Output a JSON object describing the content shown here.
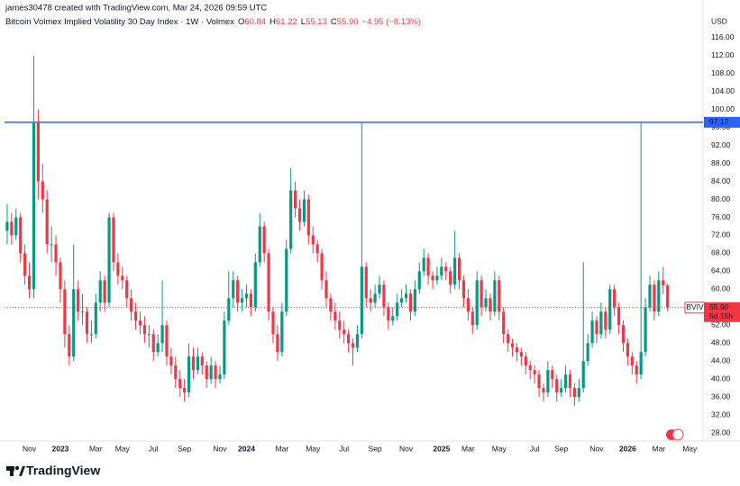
{
  "chart_data": {
    "type": "candlestick",
    "header": "james30478 created with TradingView.com, Mar 24, 2026 09:59 UTC",
    "legend": {
      "title": "Bitcoin Volmex Implied Volatility 30 Day Index · 1W · Volmex",
      "values": [
        {
          "key": "O",
          "label": "60.84"
        },
        {
          "key": "H",
          "label": "61.22"
        },
        {
          "key": "L",
          "label": "55.13"
        },
        {
          "key": "C",
          "label": "55.90"
        }
      ],
      "change": "−4.95 (−8.13%)"
    },
    "currency": "USD",
    "brand": "TradingView",
    "up_color": "#089981",
    "down_color": "#f23645",
    "xlim": [
      -0.6,
      157
    ],
    "xticks": [
      {
        "value": 5,
        "label": "Nov"
      },
      {
        "value": 12,
        "label": "2023"
      },
      {
        "value": 20,
        "label": "Mar"
      },
      {
        "value": 26,
        "label": "May"
      },
      {
        "value": 33,
        "label": "Jul"
      },
      {
        "value": 40,
        "label": "Sep"
      },
      {
        "value": 48,
        "label": "Nov"
      },
      {
        "value": 54,
        "label": "2024"
      },
      {
        "value": 62,
        "label": "Mar"
      },
      {
        "value": 69,
        "label": "May"
      },
      {
        "value": 76,
        "label": "Jul"
      },
      {
        "value": 83,
        "label": "Sep"
      },
      {
        "value": 90,
        "label": "Nov"
      },
      {
        "value": 98,
        "label": "2025"
      },
      {
        "value": 104,
        "label": "Mar"
      },
      {
        "value": 111,
        "label": "May"
      },
      {
        "value": 119,
        "label": "Jul"
      },
      {
        "value": 125,
        "label": "Sep"
      },
      {
        "value": 133,
        "label": "Nov"
      },
      {
        "value": 140,
        "label": "2026"
      },
      {
        "value": 147,
        "label": "Mar"
      },
      {
        "value": 154,
        "label": "May"
      }
    ],
    "ylim": [
      26.2,
      124.4
    ],
    "yticks": [
      {
        "value": 28,
        "label": "28.00"
      },
      {
        "value": 32,
        "label": "32.00"
      },
      {
        "value": 36,
        "label": "36.00"
      },
      {
        "value": 40,
        "label": "40.00"
      },
      {
        "value": 44,
        "label": "44.00"
      },
      {
        "value": 48,
        "label": "48.00"
      },
      {
        "value": 52,
        "label": "52.00"
      },
      {
        "value": 56,
        "label": "56.00"
      },
      {
        "value": 60,
        "label": "60.00"
      },
      {
        "value": 64,
        "label": "64.00"
      },
      {
        "value": 68,
        "label": "68.00"
      },
      {
        "value": 72,
        "label": "72.00"
      },
      {
        "value": 76,
        "label": "76.00"
      },
      {
        "value": 80,
        "label": "80.00"
      },
      {
        "value": 84,
        "label": "84.00"
      },
      {
        "value": 88,
        "label": "88.00"
      },
      {
        "value": 92,
        "label": "92.00"
      },
      {
        "value": 96,
        "label": "96.00"
      },
      {
        "value": 100,
        "label": "100.00"
      },
      {
        "value": 104,
        "label": "104.00"
      },
      {
        "value": 108,
        "label": "108.00"
      },
      {
        "value": 112,
        "label": "112.00"
      },
      {
        "value": 116,
        "label": "116.00"
      }
    ],
    "hline": {
      "value": 97.17,
      "label": "97.17",
      "color": "#2962ff"
    },
    "last_price": {
      "value": 55.9,
      "label": "55.90",
      "countdown": "5d 15h",
      "symbol": "BVIV"
    },
    "series": [
      {
        "name": "BVIV",
        "ohlc": [
          [
            73,
            79,
            70,
            75
          ],
          [
            75,
            77,
            70,
            72
          ],
          [
            72,
            78,
            71,
            76
          ],
          [
            76,
            77,
            66,
            68
          ],
          [
            68,
            70,
            61,
            63
          ],
          [
            63,
            66,
            58,
            60
          ],
          [
            60,
            112,
            58,
            97
          ],
          [
            97,
            100,
            80,
            84
          ],
          [
            84,
            88,
            77,
            80
          ],
          [
            80,
            82,
            68,
            70
          ],
          [
            70,
            74,
            66,
            70
          ],
          [
            70,
            72,
            63,
            66
          ],
          [
            66,
            67,
            57,
            60
          ],
          [
            60,
            62,
            47,
            50
          ],
          [
            50,
            52,
            43,
            45
          ],
          [
            45,
            70,
            44,
            60
          ],
          [
            60,
            62,
            53,
            55
          ],
          [
            55,
            59,
            52,
            55
          ],
          [
            55,
            56,
            48,
            50
          ],
          [
            50,
            53,
            48,
            50
          ],
          [
            50,
            59,
            49,
            57
          ],
          [
            57,
            64,
            55,
            62
          ],
          [
            62,
            63,
            55,
            57
          ],
          [
            57,
            77,
            56,
            76
          ],
          [
            76,
            77,
            64,
            66
          ],
          [
            66,
            68,
            61,
            63
          ],
          [
            63,
            65,
            60,
            62
          ],
          [
            62,
            63,
            56,
            58
          ],
          [
            58,
            60,
            53,
            55
          ],
          [
            55,
            57,
            51,
            53
          ],
          [
            53,
            55,
            50,
            52
          ],
          [
            52,
            54,
            48,
            50
          ],
          [
            50,
            52,
            47,
            50
          ],
          [
            50,
            51,
            44,
            46
          ],
          [
            46,
            50,
            45,
            48
          ],
          [
            48,
            62,
            46,
            52
          ],
          [
            52,
            53,
            43,
            45
          ],
          [
            45,
            47,
            41,
            43
          ],
          [
            43,
            45,
            38,
            40
          ],
          [
            40,
            42,
            36,
            38
          ],
          [
            38,
            40,
            35,
            37
          ],
          [
            37,
            48,
            36,
            45
          ],
          [
            45,
            47,
            40,
            42
          ],
          [
            42,
            47,
            41,
            45
          ],
          [
            45,
            46,
            41,
            43
          ],
          [
            43,
            44,
            38,
            40
          ],
          [
            40,
            45,
            39,
            43
          ],
          [
            43,
            44,
            38,
            40
          ],
          [
            40,
            43,
            39,
            41
          ],
          [
            41,
            55,
            40,
            53
          ],
          [
            53,
            64,
            52,
            58
          ],
          [
            58,
            64,
            56,
            62
          ],
          [
            62,
            63,
            55,
            57
          ],
          [
            57,
            60,
            55,
            58
          ],
          [
            58,
            61,
            56,
            59
          ],
          [
            59,
            60,
            54,
            56
          ],
          [
            56,
            68,
            55,
            66
          ],
          [
            66,
            77,
            65,
            74
          ],
          [
            74,
            75,
            66,
            68
          ],
          [
            68,
            69,
            53,
            55
          ],
          [
            55,
            56,
            48,
            50
          ],
          [
            50,
            52,
            44,
            46
          ],
          [
            46,
            57,
            45,
            55
          ],
          [
            55,
            71,
            54,
            69
          ],
          [
            69,
            87,
            68,
            82
          ],
          [
            82,
            84,
            76,
            78
          ],
          [
            78,
            80,
            73,
            75
          ],
          [
            75,
            82,
            74,
            80
          ],
          [
            80,
            81,
            70,
            72
          ],
          [
            72,
            74,
            68,
            70
          ],
          [
            70,
            71,
            66,
            68
          ],
          [
            68,
            69,
            60,
            62
          ],
          [
            62,
            64,
            56,
            58
          ],
          [
            58,
            59,
            53,
            55
          ],
          [
            55,
            57,
            51,
            53
          ],
          [
            53,
            55,
            49,
            51
          ],
          [
            51,
            53,
            48,
            50
          ],
          [
            50,
            51,
            46,
            48
          ],
          [
            48,
            49,
            43,
            47
          ],
          [
            47,
            52,
            46,
            50
          ],
          [
            50,
            97,
            49,
            65
          ],
          [
            65,
            66,
            56,
            58
          ],
          [
            58,
            60,
            55,
            57
          ],
          [
            57,
            61,
            56,
            59
          ],
          [
            59,
            63,
            58,
            61
          ],
          [
            61,
            62,
            54,
            56
          ],
          [
            56,
            57,
            51,
            53
          ],
          [
            53,
            56,
            52,
            54
          ],
          [
            54,
            59,
            53,
            57
          ],
          [
            57,
            60,
            56,
            58
          ],
          [
            58,
            61,
            57,
            59
          ],
          [
            59,
            60,
            53,
            55
          ],
          [
            55,
            62,
            54,
            60
          ],
          [
            60,
            66,
            59,
            64
          ],
          [
            64,
            69,
            63,
            67
          ],
          [
            67,
            68,
            61,
            63
          ],
          [
            63,
            64,
            60,
            62
          ],
          [
            62,
            65,
            61,
            63
          ],
          [
            63,
            67,
            62,
            65
          ],
          [
            65,
            66,
            62,
            64
          ],
          [
            64,
            65,
            59,
            61
          ],
          [
            61,
            73,
            60,
            67
          ],
          [
            67,
            68,
            60,
            62
          ],
          [
            62,
            63,
            56,
            58
          ],
          [
            58,
            60,
            53,
            55
          ],
          [
            55,
            56,
            50,
            52
          ],
          [
            52,
            64,
            51,
            62
          ],
          [
            62,
            63,
            54,
            56
          ],
          [
            56,
            60,
            55,
            58
          ],
          [
            58,
            59,
            53,
            55
          ],
          [
            55,
            64,
            54,
            62
          ],
          [
            62,
            63,
            53,
            55
          ],
          [
            55,
            56,
            48,
            50
          ],
          [
            50,
            51,
            46,
            48
          ],
          [
            48,
            49,
            45,
            47
          ],
          [
            47,
            48,
            44,
            46
          ],
          [
            46,
            47,
            43,
            45
          ],
          [
            45,
            46,
            41,
            43
          ],
          [
            43,
            44,
            40,
            42
          ],
          [
            42,
            43,
            39,
            41
          ],
          [
            41,
            42,
            36,
            38
          ],
          [
            38,
            39,
            35,
            37
          ],
          [
            37,
            44,
            36,
            42
          ],
          [
            42,
            43,
            38,
            40
          ],
          [
            40,
            41,
            35,
            37
          ],
          [
            37,
            40,
            36,
            38
          ],
          [
            38,
            43,
            37,
            41
          ],
          [
            41,
            42,
            36,
            38
          ],
          [
            38,
            39,
            34,
            36
          ],
          [
            36,
            40,
            35,
            38
          ],
          [
            38,
            66,
            37,
            44
          ],
          [
            44,
            50,
            43,
            48
          ],
          [
            48,
            55,
            47,
            53
          ],
          [
            53,
            54,
            48,
            50
          ],
          [
            50,
            57,
            49,
            55
          ],
          [
            55,
            56,
            49,
            51
          ],
          [
            51,
            61,
            50,
            60
          ],
          [
            60,
            61,
            54,
            56
          ],
          [
            56,
            57,
            50,
            52
          ],
          [
            52,
            53,
            46,
            48
          ],
          [
            48,
            49,
            43,
            45
          ],
          [
            45,
            46,
            41,
            43
          ],
          [
            43,
            44,
            39,
            41
          ],
          [
            41,
            97,
            40,
            46
          ],
          [
            46,
            58,
            45,
            56
          ],
          [
            56,
            63,
            55,
            61
          ],
          [
            61,
            62,
            53,
            55
          ],
          [
            55,
            64,
            54,
            62
          ],
          [
            62,
            65,
            59,
            60.84
          ],
          [
            60.84,
            61.22,
            55.13,
            55.9
          ]
        ]
      }
    ]
  }
}
